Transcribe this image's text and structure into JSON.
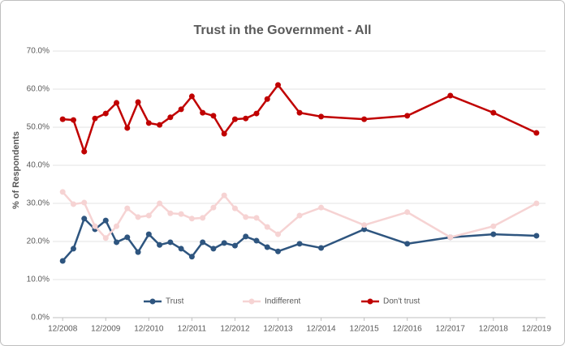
{
  "chart_data": {
    "type": "line",
    "title": "Trust in the Government - All",
    "y_label": "% of Respondents",
    "x": [
      2008.96,
      2009.21,
      2009.46,
      2009.71,
      2009.96,
      2010.21,
      2010.46,
      2010.71,
      2010.96,
      2011.21,
      2011.46,
      2011.71,
      2011.96,
      2012.21,
      2012.46,
      2012.71,
      2012.96,
      2013.21,
      2013.46,
      2013.71,
      2013.96,
      2014.46,
      2014.96,
      2015.96,
      2016.96,
      2017.96,
      2018.96,
      2019.96
    ],
    "series": [
      {
        "name": "Trust",
        "color": "#2e557f",
        "values": [
          14.9,
          18.1,
          26.0,
          23.2,
          25.5,
          19.8,
          21.1,
          17.2,
          21.9,
          19.1,
          19.8,
          18.1,
          16.0,
          19.8,
          18.1,
          19.6,
          18.9,
          21.3,
          20.2,
          18.5,
          17.4,
          19.4,
          18.3,
          23.2,
          19.4,
          21.1,
          21.9,
          21.5
        ]
      },
      {
        "name": "Indifferent",
        "color": "#f6d3d3",
        "values": [
          33.0,
          29.8,
          30.2,
          24.0,
          20.9,
          24.0,
          28.7,
          26.4,
          26.8,
          30.0,
          27.4,
          27.2,
          26.0,
          26.2,
          28.9,
          32.1,
          28.7,
          26.4,
          26.2,
          23.8,
          21.9,
          26.8,
          28.9,
          24.3,
          27.7,
          21.1,
          24.0,
          30.0
        ]
      },
      {
        "name": "Don't trust",
        "color": "#c00000",
        "values": [
          52.1,
          51.9,
          43.6,
          52.3,
          53.6,
          56.4,
          49.8,
          56.6,
          51.1,
          50.6,
          52.6,
          54.7,
          58.1,
          53.8,
          53.0,
          48.3,
          52.1,
          52.3,
          53.6,
          57.4,
          61.1,
          53.8,
          52.8,
          52.1,
          53.0,
          58.3,
          53.8,
          48.5
        ]
      }
    ],
    "xlim": [
      2008.73,
      2020.17
    ],
    "xticks": [
      {
        "value": 2008.96,
        "label": "12/2008"
      },
      {
        "value": 2009.96,
        "label": "12/2009"
      },
      {
        "value": 2010.96,
        "label": "12/2010"
      },
      {
        "value": 2011.96,
        "label": "12/2011"
      },
      {
        "value": 2012.96,
        "label": "12/2012"
      },
      {
        "value": 2013.96,
        "label": "12/2013"
      },
      {
        "value": 2014.96,
        "label": "12/2014"
      },
      {
        "value": 2015.96,
        "label": "12/2015"
      },
      {
        "value": 2016.96,
        "label": "12/2016"
      },
      {
        "value": 2017.96,
        "label": "12/2017"
      },
      {
        "value": 2018.96,
        "label": "12/2018"
      },
      {
        "value": 2019.96,
        "label": "12/2019"
      }
    ],
    "ylim": [
      0,
      70
    ],
    "yticks": [
      {
        "value": 0,
        "label": "0.0%"
      },
      {
        "value": 10,
        "label": "10.0%"
      },
      {
        "value": 20,
        "label": "20.0%"
      },
      {
        "value": 30,
        "label": "30.0%"
      },
      {
        "value": 40,
        "label": "40.0%"
      },
      {
        "value": 50,
        "label": "50.0%"
      },
      {
        "value": 60,
        "label": "60.0%"
      },
      {
        "value": 70,
        "label": "70.0%"
      }
    ],
    "grid": true,
    "legend": "bottom"
  }
}
